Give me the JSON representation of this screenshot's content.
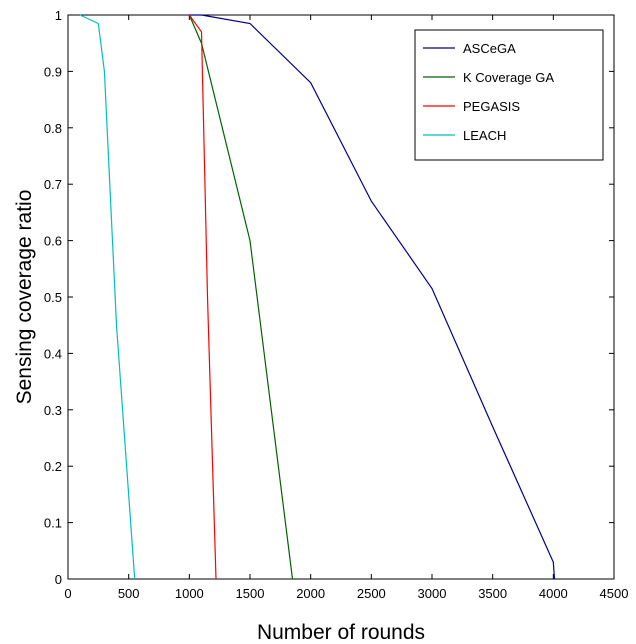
{
  "chart_data": {
    "type": "line",
    "title": "",
    "xlabel": "Number of rounds",
    "ylabel": "Sensing coverage ratio",
    "xlim": [
      0,
      4500
    ],
    "ylim": [
      0,
      1
    ],
    "x_ticks": [
      "0",
      "500",
      "1000",
      "1500",
      "2000",
      "2500",
      "3000",
      "3500",
      "4000",
      "4500"
    ],
    "y_ticks": [
      "0",
      "0.1",
      "0.2",
      "0.3",
      "0.4",
      "0.5",
      "0.6",
      "0.7",
      "0.8",
      "0.9",
      "1"
    ],
    "grid": false,
    "legend_position": "top-right",
    "series": [
      {
        "name": "ASCeGA",
        "color": "#00008b",
        "x": [
          1000,
          1100,
          1500,
          2000,
          2500,
          3000,
          3500,
          4000,
          4010
        ],
        "y": [
          1,
          1,
          0.985,
          0.88,
          0.67,
          0.515,
          0.27,
          0.03,
          0
        ]
      },
      {
        "name": "K Coverage GA",
        "color": "#006400",
        "x": [
          1000,
          1100,
          1500,
          1850
        ],
        "y": [
          1,
          0.95,
          0.6,
          0
        ]
      },
      {
        "name": "PEGASIS",
        "color": "#ff0000",
        "x": [
          1000,
          1100,
          1150,
          1220
        ],
        "y": [
          1,
          0.97,
          0.5,
          0
        ]
      },
      {
        "name": "LEACH",
        "color": "#00bfbf",
        "x": [
          100,
          250,
          300,
          400,
          550
        ],
        "y": [
          1,
          0.985,
          0.9,
          0.45,
          0
        ]
      }
    ]
  }
}
